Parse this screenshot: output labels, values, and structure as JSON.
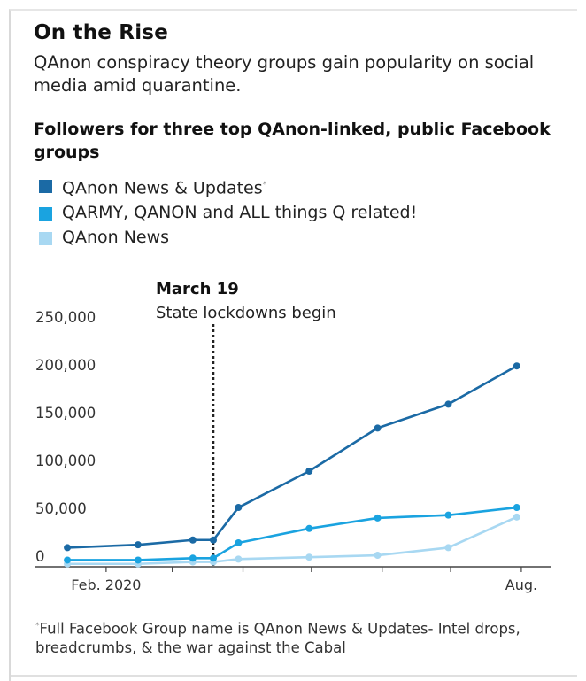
{
  "title": "On the Rise",
  "subtitle": "QAnon conspiracy theory groups gain popularity on social media amid quarantine.",
  "footnote": "Full Facebook Group name is QAnon News & Updates- Intel drops, breadcrumbs, & the war against the Cabal",
  "footnote_marker": "*",
  "chart_data": {
    "type": "line",
    "title": "Followers for three top QAnon-linked, public Facebook groups",
    "x": [
      "2020-01-15",
      "2020-02-15",
      "2020-03-10",
      "2020-03-19",
      "2020-03-30",
      "2020-04-30",
      "2020-05-30",
      "2020-06-30",
      "2020-07-30"
    ],
    "x_tick_labels": [
      "Feb. 2020",
      "Aug."
    ],
    "ylim": [
      0,
      250000
    ],
    "y_ticks": [
      0,
      50000,
      100000,
      150000,
      200000,
      250000
    ],
    "y_tick_labels": [
      "0",
      "50,000",
      "100,000",
      "150,000",
      "200,000",
      "250,000"
    ],
    "grid": false,
    "legend_position": "top-left",
    "series": [
      {
        "name": "QAnon News & Updates",
        "color": "#1b6aa5",
        "values": [
          20000,
          23000,
          28000,
          28000,
          62000,
          100000,
          145000,
          170000,
          210000
        ]
      },
      {
        "name": "QARMY, QANON and ALL things Q related!",
        "color": "#1aa3e0",
        "values": [
          7000,
          7000,
          9000,
          9000,
          25000,
          40000,
          51000,
          54000,
          62000
        ]
      },
      {
        "name": "QAnon News",
        "color": "#a8d8f2",
        "values": [
          3000,
          3000,
          5000,
          5000,
          8000,
          10000,
          12000,
          20000,
          52000
        ]
      }
    ],
    "annotation": {
      "x": "2020-03-19",
      "label": "March 19",
      "text": "State lockdowns begin"
    }
  }
}
